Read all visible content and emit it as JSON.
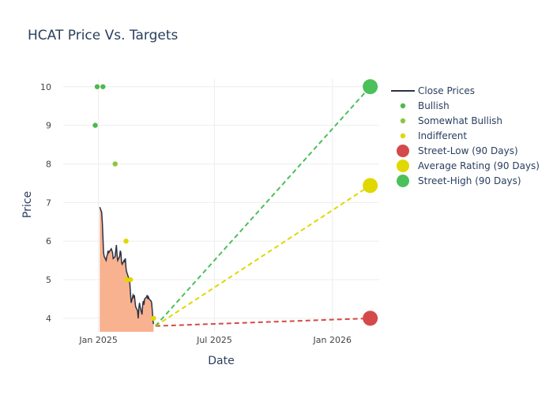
{
  "chart_data": {
    "type": "line",
    "title": "HCAT Price Vs. Targets",
    "xlabel": "Date",
    "ylabel": "Price",
    "xlim": [
      "2024-11-07",
      "2026-03-15"
    ],
    "ylim": [
      3.65,
      10.2
    ],
    "x_ticks": [
      {
        "date": "2025-01-01",
        "label": "Jan 2025"
      },
      {
        "date": "2025-07-01",
        "label": "Jul 2025"
      },
      {
        "date": "2026-01-01",
        "label": "Jan 2026"
      }
    ],
    "y_ticks": [
      4,
      5,
      6,
      7,
      8,
      9,
      10
    ],
    "grid": true,
    "legend_position": "top-right",
    "colors": {
      "close": "#2a3346",
      "fill": "#f9b28f",
      "bullish": "#4cb94c",
      "somewhat_bullish": "#8cc63e",
      "indifferent": "#e0d800",
      "street_low": "#d44a4a",
      "average": "#e0d800",
      "street_high": "#4cc05a"
    },
    "close_prices": [
      [
        "2025-01-03",
        6.88
      ],
      [
        "2025-01-06",
        6.75
      ],
      [
        "2025-01-07",
        6.5
      ],
      [
        "2025-01-08",
        6.1
      ],
      [
        "2025-01-09",
        5.7
      ],
      [
        "2025-01-10",
        5.6
      ],
      [
        "2025-01-13",
        5.5
      ],
      [
        "2025-01-14",
        5.6
      ],
      [
        "2025-01-15",
        5.65
      ],
      [
        "2025-01-16",
        5.75
      ],
      [
        "2025-01-17",
        5.7
      ],
      [
        "2025-01-21",
        5.8
      ],
      [
        "2025-01-22",
        5.75
      ],
      [
        "2025-01-23",
        5.7
      ],
      [
        "2025-01-24",
        5.55
      ],
      [
        "2025-01-27",
        5.6
      ],
      [
        "2025-01-28",
        5.75
      ],
      [
        "2025-01-29",
        5.9
      ],
      [
        "2025-01-30",
        5.65
      ],
      [
        "2025-01-31",
        5.5
      ],
      [
        "2025-02-03",
        5.6
      ],
      [
        "2025-02-04",
        5.75
      ],
      [
        "2025-02-05",
        5.7
      ],
      [
        "2025-02-06",
        5.45
      ],
      [
        "2025-02-07",
        5.4
      ],
      [
        "2025-02-10",
        5.5
      ],
      [
        "2025-02-11",
        5.45
      ],
      [
        "2025-02-12",
        5.55
      ],
      [
        "2025-02-13",
        5.3
      ],
      [
        "2025-02-14",
        5.2
      ],
      [
        "2025-02-18",
        5.0
      ],
      [
        "2025-02-19",
        4.9
      ],
      [
        "2025-02-20",
        4.65
      ],
      [
        "2025-02-21",
        4.4
      ],
      [
        "2025-02-24",
        4.6
      ],
      [
        "2025-02-25",
        4.55
      ],
      [
        "2025-02-26",
        4.6
      ],
      [
        "2025-02-27",
        4.45
      ],
      [
        "2025-02-28",
        4.3
      ],
      [
        "2025-03-03",
        4.2
      ],
      [
        "2025-03-04",
        4.0
      ],
      [
        "2025-03-05",
        4.25
      ],
      [
        "2025-03-06",
        4.4
      ],
      [
        "2025-03-07",
        4.3
      ],
      [
        "2025-03-10",
        4.1
      ],
      [
        "2025-03-11",
        4.35
      ],
      [
        "2025-03-12",
        4.45
      ],
      [
        "2025-03-13",
        4.35
      ],
      [
        "2025-03-14",
        4.5
      ],
      [
        "2025-03-17",
        4.55
      ],
      [
        "2025-03-18",
        4.6
      ],
      [
        "2025-03-19",
        4.5
      ],
      [
        "2025-03-20",
        4.55
      ],
      [
        "2025-03-21",
        4.5
      ],
      [
        "2025-03-24",
        4.45
      ],
      [
        "2025-03-25",
        4.4
      ],
      [
        "2025-03-26",
        4.2
      ],
      [
        "2025-03-27",
        3.95
      ],
      [
        "2025-03-28",
        3.85
      ]
    ],
    "ratings": [
      {
        "date": "2024-12-27",
        "price": 9,
        "category": "bullish"
      },
      {
        "date": "2024-12-30",
        "price": 10,
        "category": "bullish"
      },
      {
        "date": "2025-01-08",
        "price": 10,
        "category": "bullish"
      },
      {
        "date": "2025-01-27",
        "price": 8,
        "category": "somewhat_bullish"
      },
      {
        "date": "2025-02-13",
        "price": 6,
        "category": "indifferent"
      },
      {
        "date": "2025-02-14",
        "price": 5,
        "category": "indifferent"
      },
      {
        "date": "2025-02-20",
        "price": 5,
        "category": "indifferent"
      },
      {
        "date": "2025-03-28",
        "price": 4,
        "category": "indifferent"
      }
    ],
    "targets": {
      "start": {
        "date": "2025-03-31",
        "price": 3.8
      },
      "end_date": "2026-03-01",
      "street_low": 4,
      "average": 7.44,
      "street_high": 10
    },
    "legend": [
      {
        "key": "close",
        "label": "Close Prices",
        "type": "line"
      },
      {
        "key": "bullish",
        "label": "Bullish",
        "type": "dot"
      },
      {
        "key": "somewhat_bullish",
        "label": "Somewhat Bullish",
        "type": "dot"
      },
      {
        "key": "indifferent",
        "label": "Indifferent",
        "type": "dot"
      },
      {
        "key": "street_low",
        "label": "Street-Low (90 Days)",
        "type": "big"
      },
      {
        "key": "average",
        "label": "Average Rating (90 Days)",
        "type": "big"
      },
      {
        "key": "street_high",
        "label": "Street-High (90 Days)",
        "type": "big"
      }
    ]
  }
}
